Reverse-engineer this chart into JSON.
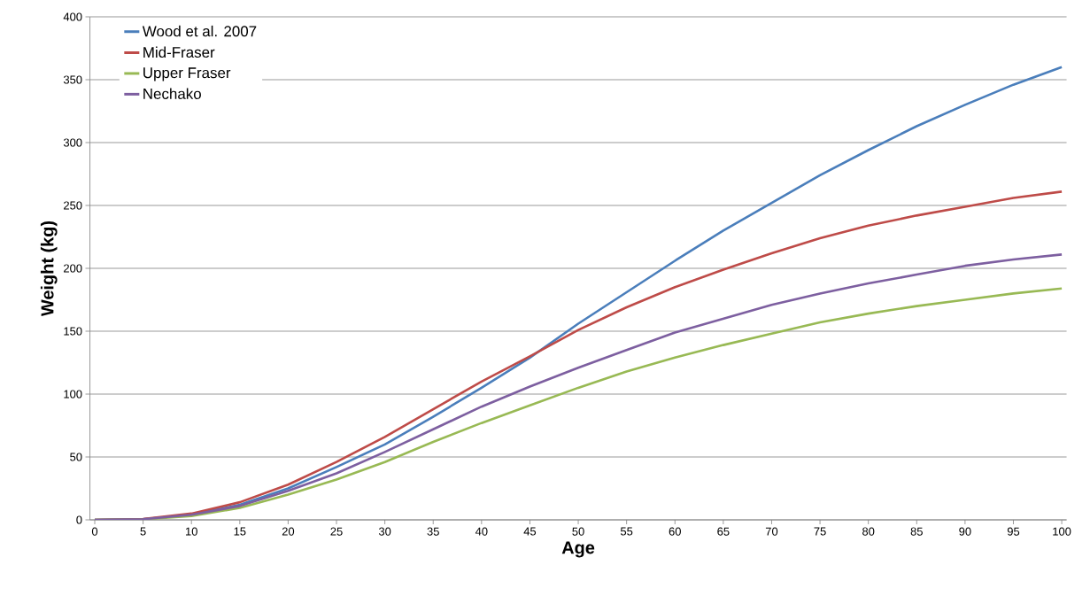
{
  "chart_data": {
    "type": "line",
    "xlabel": "Age",
    "ylabel": "Weight (kg)",
    "x": [
      0,
      5,
      10,
      15,
      20,
      25,
      30,
      35,
      40,
      45,
      50,
      55,
      60,
      65,
      70,
      75,
      80,
      85,
      90,
      95,
      100
    ],
    "series": [
      {
        "name": "Wood et al. 2007",
        "color": "#4a7ebb",
        "values": [
          0,
          0.5,
          4,
          12,
          25,
          42,
          60,
          82,
          105,
          129,
          156,
          181,
          206,
          230,
          252,
          274,
          294,
          313,
          330,
          346,
          360
        ]
      },
      {
        "name": "Mid-Fraser",
        "color": "#be4b48",
        "values": [
          0,
          0.7,
          5,
          14,
          28,
          46,
          66,
          88,
          110,
          130,
          151,
          169,
          185,
          199,
          212,
          224,
          234,
          242,
          249,
          256,
          261
        ]
      },
      {
        "name": "Upper Fraser",
        "color": "#98b954",
        "values": [
          0,
          0.4,
          3,
          9.5,
          20,
          32,
          46,
          62,
          77,
          91,
          105,
          118,
          129,
          139,
          148,
          157,
          164,
          170,
          175,
          180,
          184
        ]
      },
      {
        "name": "Nechako",
        "color": "#7d5fa0",
        "values": [
          0,
          0.5,
          4,
          11,
          23,
          37,
          54,
          72,
          90,
          106,
          121,
          135,
          149,
          160,
          171,
          180,
          188,
          195,
          202,
          207,
          211
        ]
      }
    ],
    "xlim": [
      -0.5,
      100.5
    ],
    "ylim": [
      0,
      400
    ],
    "xticks": [
      0,
      5,
      10,
      15,
      20,
      25,
      30,
      35,
      40,
      45,
      50,
      55,
      60,
      65,
      70,
      75,
      80,
      85,
      90,
      95,
      100
    ],
    "yticks": [
      0,
      50,
      100,
      150,
      200,
      250,
      300,
      350,
      400
    ],
    "grid": "y",
    "legend": "top left",
    "marker": "none",
    "line_style": "solid"
  }
}
